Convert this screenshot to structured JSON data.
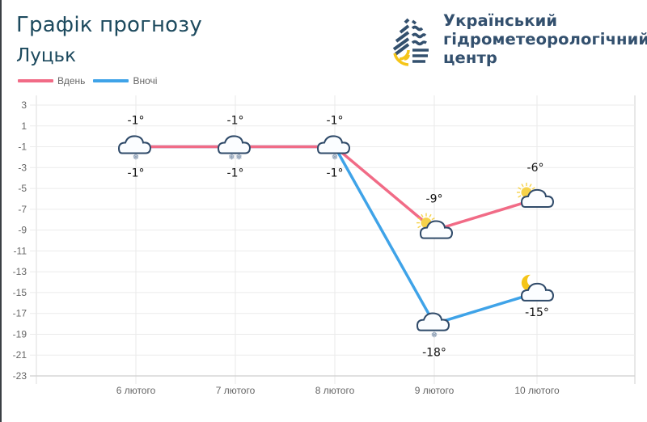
{
  "header": {
    "title": "Графік прогнозу",
    "city": "Луцьк"
  },
  "organization": {
    "name_line1": "Український",
    "name_line2": "гідрометеорологічний",
    "name_line3": "центр",
    "logo_icon": "water-drop-logo-icon"
  },
  "legend": [
    {
      "label": "Вдень",
      "color": "#f16b86"
    },
    {
      "label": "Вночі",
      "color": "#3fa3e8"
    }
  ],
  "chart_data": {
    "type": "line",
    "title": "Графік прогнозу",
    "subtitle": "Луцьк",
    "xlabel": "",
    "ylabel": "",
    "categories": [
      "6 лютого",
      "7 лютого",
      "8 лютого",
      "9 лютого",
      "10 лютого"
    ],
    "series": [
      {
        "name": "Вдень",
        "color": "#f16b86",
        "values": [
          -1,
          -1,
          -1,
          -9,
          -6
        ],
        "labels": [
          "-1°",
          "-1°",
          "-1°",
          "-9°",
          "-6°"
        ],
        "icons": [
          "cloud-snow-icon",
          "cloud-snow-icon",
          "cloud-snow-icon",
          "sun-cloud-icon",
          "sun-cloud-icon"
        ]
      },
      {
        "name": "Вночі",
        "color": "#3fa3e8",
        "values": [
          -1,
          -1,
          -1,
          -18,
          -15
        ],
        "labels": [
          "-1°",
          "-1°",
          "-1°",
          "-18°",
          "-15°"
        ],
        "icons": [
          "cloud-snow-icon",
          "cloud-snow-icon",
          "cloud-snow-icon",
          "cloud-snow-icon",
          "moon-cloud-icon"
        ]
      }
    ],
    "y_ticks": [
      3,
      1,
      -1,
      -3,
      -5,
      -7,
      -9,
      -11,
      -13,
      -15,
      -17,
      -19,
      -21,
      -23
    ],
    "ylim": [
      -23,
      3
    ],
    "grid": true,
    "legend_position": "top-left"
  }
}
